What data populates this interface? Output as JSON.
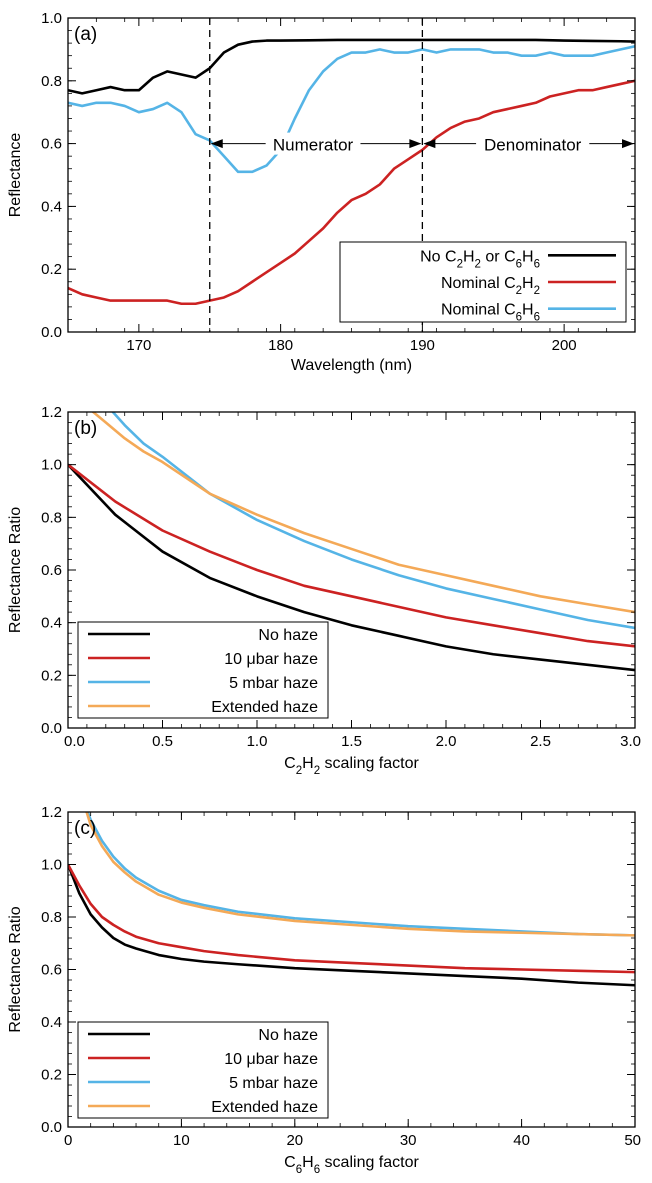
{
  "chart_data": [
    {
      "type": "line",
      "panel_label": "(a)",
      "xlabel": "Wavelength (nm)",
      "ylabel": "Reflectance",
      "xlim": [
        165,
        205
      ],
      "ylim": [
        0.0,
        1.0
      ],
      "xticks": [
        170,
        180,
        190,
        200
      ],
      "yticks": [
        0.0,
        0.2,
        0.4,
        0.6,
        0.8,
        1.0
      ],
      "ytick_labels": [
        "0.0",
        "0.2",
        "0.4",
        "0.6",
        "0.8",
        "1.0"
      ],
      "vlines": [
        175,
        190
      ],
      "annotations": [
        {
          "text": "Numerator",
          "x_from": 175,
          "x_to": 190,
          "y": 0.6
        },
        {
          "text": "Denominator",
          "x_from": 190,
          "x_to": 205,
          "y": 0.6
        }
      ],
      "legend_position": "lower-right",
      "series": [
        {
          "name": "No C₂H₂ or C₆H₆",
          "color": "#000000",
          "x": [
            165,
            166,
            167,
            168,
            169,
            170,
            171,
            172,
            173,
            174,
            175,
            176,
            177,
            178,
            179,
            180,
            182,
            184,
            186,
            188,
            190,
            192,
            194,
            196,
            198,
            200,
            202,
            204,
            205
          ],
          "y": [
            0.77,
            0.76,
            0.77,
            0.78,
            0.77,
            0.77,
            0.81,
            0.83,
            0.82,
            0.81,
            0.84,
            0.89,
            0.915,
            0.925,
            0.928,
            0.928,
            0.929,
            0.93,
            0.93,
            0.93,
            0.93,
            0.93,
            0.93,
            0.93,
            0.93,
            0.928,
            0.927,
            0.926,
            0.925
          ]
        },
        {
          "name": "Nominal C₂H₂",
          "color": "#cc2222",
          "x": [
            165,
            166,
            167,
            168,
            169,
            170,
            171,
            172,
            173,
            174,
            175,
            176,
            177,
            178,
            179,
            180,
            181,
            182,
            183,
            184,
            185,
            186,
            187,
            188,
            189,
            190,
            191,
            192,
            193,
            194,
            195,
            196,
            197,
            198,
            199,
            200,
            201,
            202,
            203,
            204,
            205
          ],
          "y": [
            0.14,
            0.12,
            0.11,
            0.1,
            0.1,
            0.1,
            0.1,
            0.1,
            0.09,
            0.09,
            0.1,
            0.11,
            0.13,
            0.16,
            0.19,
            0.22,
            0.25,
            0.29,
            0.33,
            0.38,
            0.42,
            0.44,
            0.47,
            0.52,
            0.55,
            0.58,
            0.62,
            0.65,
            0.67,
            0.68,
            0.7,
            0.71,
            0.72,
            0.73,
            0.75,
            0.76,
            0.77,
            0.77,
            0.78,
            0.79,
            0.8
          ]
        },
        {
          "name": "Nominal C₆H₆",
          "color": "#55b4e6",
          "x": [
            165,
            166,
            167,
            168,
            169,
            170,
            171,
            172,
            173,
            174,
            175,
            176,
            177,
            178,
            179,
            180,
            181,
            182,
            183,
            184,
            185,
            186,
            187,
            188,
            189,
            190,
            191,
            192,
            193,
            194,
            195,
            196,
            197,
            198,
            199,
            200,
            201,
            202,
            203,
            204,
            205
          ],
          "y": [
            0.73,
            0.72,
            0.73,
            0.73,
            0.72,
            0.7,
            0.71,
            0.73,
            0.7,
            0.63,
            0.61,
            0.56,
            0.51,
            0.51,
            0.53,
            0.58,
            0.68,
            0.77,
            0.83,
            0.87,
            0.89,
            0.89,
            0.9,
            0.89,
            0.89,
            0.9,
            0.89,
            0.9,
            0.9,
            0.9,
            0.89,
            0.89,
            0.88,
            0.88,
            0.89,
            0.88,
            0.88,
            0.88,
            0.89,
            0.9,
            0.91
          ]
        }
      ]
    },
    {
      "type": "line",
      "panel_label": "(b)",
      "xlabel": "C₂H₂ scaling factor",
      "ylabel": "Reflectance Ratio",
      "xlim": [
        0.0,
        3.0
      ],
      "ylim": [
        0.0,
        1.2
      ],
      "xticks": [
        0.0,
        0.5,
        1.0,
        1.5,
        2.0,
        2.5,
        3.0
      ],
      "xtick_labels": [
        "0.0",
        "0.5",
        "1.0",
        "1.5",
        "2.0",
        "2.5",
        "3.0"
      ],
      "yticks": [
        0.0,
        0.2,
        0.4,
        0.6,
        0.8,
        1.0,
        1.2
      ],
      "ytick_labels": [
        "0.0",
        "0.2",
        "0.4",
        "0.6",
        "0.8",
        "1.0",
        "1.2"
      ],
      "legend_position": "lower-left",
      "series": [
        {
          "name": "No haze",
          "color": "#000000",
          "x": [
            0,
            0.25,
            0.5,
            0.75,
            1.0,
            1.25,
            1.5,
            1.75,
            2.0,
            2.25,
            2.5,
            2.75,
            3.0
          ],
          "y": [
            1.0,
            0.81,
            0.67,
            0.57,
            0.5,
            0.44,
            0.39,
            0.35,
            0.31,
            0.28,
            0.26,
            0.24,
            0.22
          ]
        },
        {
          "name": "10 μbar haze",
          "color": "#cc2222",
          "x": [
            0,
            0.25,
            0.5,
            0.75,
            1.0,
            1.25,
            1.5,
            1.75,
            2.0,
            2.25,
            2.5,
            2.75,
            3.0
          ],
          "y": [
            1.0,
            0.86,
            0.75,
            0.67,
            0.6,
            0.54,
            0.5,
            0.46,
            0.42,
            0.39,
            0.36,
            0.33,
            0.31
          ]
        },
        {
          "name": "5 mbar haze",
          "color": "#55b4e6",
          "x": [
            0.2,
            0.3,
            0.4,
            0.5,
            0.75,
            1.0,
            1.25,
            1.5,
            1.75,
            2.0,
            2.25,
            2.5,
            2.75,
            3.0
          ],
          "y": [
            1.23,
            1.15,
            1.08,
            1.03,
            0.89,
            0.79,
            0.71,
            0.64,
            0.58,
            0.53,
            0.49,
            0.45,
            0.41,
            0.38
          ]
        },
        {
          "name": "Extended haze",
          "color": "#f4a957",
          "x": [
            0.1,
            0.2,
            0.3,
            0.4,
            0.5,
            0.75,
            1.0,
            1.25,
            1.5,
            1.75,
            2.0,
            2.25,
            2.5,
            2.75,
            3.0
          ],
          "y": [
            1.22,
            1.16,
            1.1,
            1.05,
            1.01,
            0.89,
            0.81,
            0.74,
            0.68,
            0.62,
            0.58,
            0.54,
            0.5,
            0.47,
            0.44
          ]
        }
      ]
    },
    {
      "type": "line",
      "panel_label": "(c)",
      "xlabel": "C₆H₆ scaling factor",
      "ylabel": "Reflectance Ratio",
      "xlim": [
        0,
        50
      ],
      "ylim": [
        0.0,
        1.2
      ],
      "xticks": [
        0,
        10,
        20,
        30,
        40,
        50
      ],
      "yticks": [
        0.0,
        0.2,
        0.4,
        0.6,
        0.8,
        1.0,
        1.2
      ],
      "ytick_labels": [
        "0.0",
        "0.2",
        "0.4",
        "0.6",
        "0.8",
        "1.0",
        "1.2"
      ],
      "legend_position": "lower-left",
      "series": [
        {
          "name": "No haze",
          "color": "#000000",
          "x": [
            0,
            1,
            2,
            3,
            4,
            5,
            6,
            8,
            10,
            12,
            15,
            20,
            25,
            30,
            35,
            40,
            45,
            50
          ],
          "y": [
            1.0,
            0.89,
            0.81,
            0.76,
            0.72,
            0.695,
            0.68,
            0.655,
            0.64,
            0.63,
            0.62,
            0.605,
            0.595,
            0.585,
            0.575,
            0.565,
            0.55,
            0.54
          ]
        },
        {
          "name": "10 μbar haze",
          "color": "#cc2222",
          "x": [
            0,
            1,
            2,
            3,
            4,
            5,
            6,
            8,
            10,
            12,
            15,
            20,
            25,
            30,
            35,
            40,
            45,
            50
          ],
          "y": [
            1.0,
            0.92,
            0.85,
            0.8,
            0.77,
            0.745,
            0.725,
            0.7,
            0.685,
            0.67,
            0.655,
            0.635,
            0.625,
            0.615,
            0.605,
            0.6,
            0.595,
            0.59
          ]
        },
        {
          "name": "5 mbar haze",
          "color": "#55b4e6",
          "x": [
            1.5,
            2,
            3,
            4,
            5,
            6,
            8,
            10,
            12,
            15,
            20,
            25,
            30,
            35,
            40,
            45,
            50
          ],
          "y": [
            1.23,
            1.17,
            1.09,
            1.03,
            0.985,
            0.95,
            0.9,
            0.865,
            0.845,
            0.82,
            0.795,
            0.78,
            0.765,
            0.755,
            0.745,
            0.735,
            0.73
          ]
        },
        {
          "name": "Extended haze",
          "color": "#f4a957",
          "x": [
            1.5,
            2,
            3,
            4,
            5,
            6,
            8,
            10,
            12,
            15,
            20,
            25,
            30,
            35,
            40,
            45,
            50
          ],
          "y": [
            1.22,
            1.15,
            1.07,
            1.01,
            0.97,
            0.935,
            0.885,
            0.855,
            0.835,
            0.81,
            0.785,
            0.77,
            0.755,
            0.745,
            0.74,
            0.735,
            0.73
          ]
        }
      ]
    }
  ]
}
